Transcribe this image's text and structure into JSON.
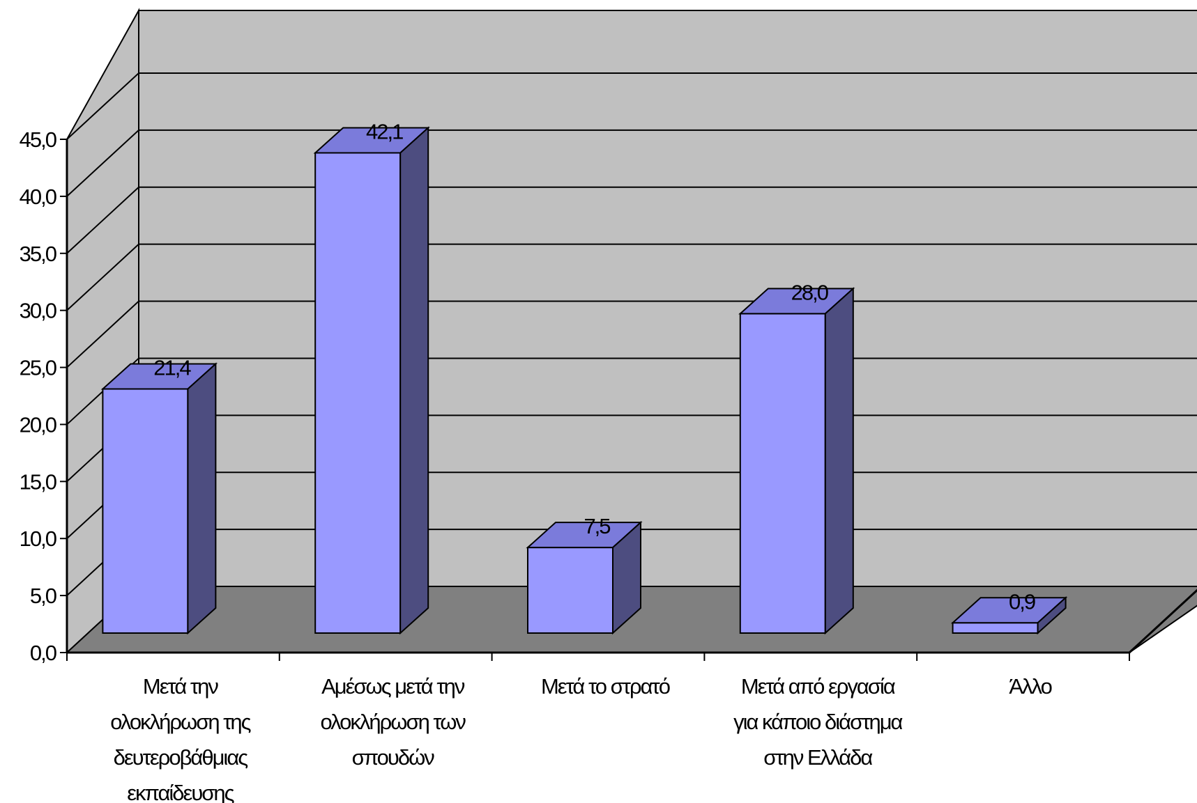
{
  "chart_data": {
    "type": "bar",
    "style": "3d-column",
    "categories": [
      [
        "Μετά την",
        "ολοκλήρωση της",
        "δευτεροβάθμιας",
        "εκπαίδευσης"
      ],
      [
        "Αμέσως μετά την",
        "ολοκλήρωση των",
        "σπουδών"
      ],
      [
        "Μετά το στρατό"
      ],
      [
        "Μετά από εργασία",
        "για κάποιο διάστημα",
        "στην Ελλάδα"
      ],
      [
        "Άλλο"
      ]
    ],
    "values": [
      21.4,
      42.1,
      7.5,
      28.0,
      0.9
    ],
    "data_labels": [
      "21,4",
      "42,1",
      "7,5",
      "28,0",
      "0,9"
    ],
    "yticks": [
      "0,0",
      "5,0",
      "10,0",
      "15,0",
      "20,0",
      "25,0",
      "30,0",
      "35,0",
      "40,0",
      "45,0"
    ],
    "ylim": [
      0,
      45
    ],
    "ystep": 5,
    "title": "",
    "xlabel": "",
    "ylabel": "",
    "grid": true,
    "legend": "none",
    "colors": {
      "bar_front": "#9999FF",
      "bar_top": "#7B7BDB",
      "bar_side": "#4D4D80",
      "wall": "#C0C0C0",
      "floor": "#808080",
      "gridline": "#000000"
    }
  }
}
